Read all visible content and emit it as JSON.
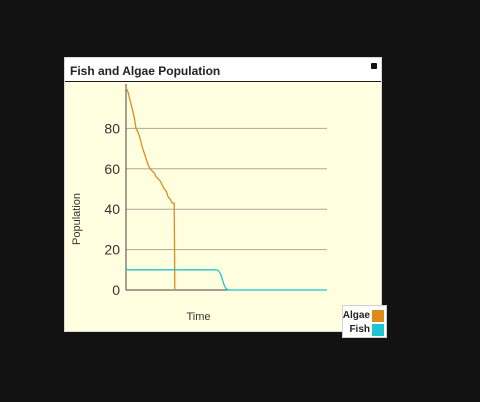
{
  "chart_data": {
    "type": "line",
    "title": "Fish and Algae Population",
    "xlabel": "Time",
    "ylabel": "Population",
    "ylim": [
      0,
      100
    ],
    "xlim": [
      0,
      100
    ],
    "yticks": [
      0,
      20,
      40,
      60,
      80
    ],
    "grid": true,
    "legend_position": "bottom-right outside",
    "series": [
      {
        "name": "Algae",
        "color": "#e08a1e",
        "x": [
          0,
          1,
          2,
          3,
          4,
          5,
          6,
          7,
          8,
          9,
          10,
          11,
          12,
          13,
          14,
          15,
          16,
          17,
          18,
          19,
          20,
          21,
          22,
          23,
          23.5,
          24,
          24.3
        ],
        "y": [
          100,
          98,
          94,
          90,
          86,
          80,
          78,
          75,
          71,
          68,
          65,
          62,
          60,
          59,
          58,
          56,
          55,
          54,
          52,
          50,
          49,
          46,
          45,
          43,
          43,
          43,
          0
        ]
      },
      {
        "name": "Fish",
        "color": "#1ec4cf",
        "x": [
          0,
          10,
          20,
          30,
          40,
          45,
          46,
          47,
          48,
          49,
          50,
          51,
          100
        ],
        "y": [
          10,
          10,
          10,
          10,
          10,
          10,
          9.5,
          8,
          5,
          2,
          0.5,
          0,
          0
        ]
      }
    ]
  }
}
